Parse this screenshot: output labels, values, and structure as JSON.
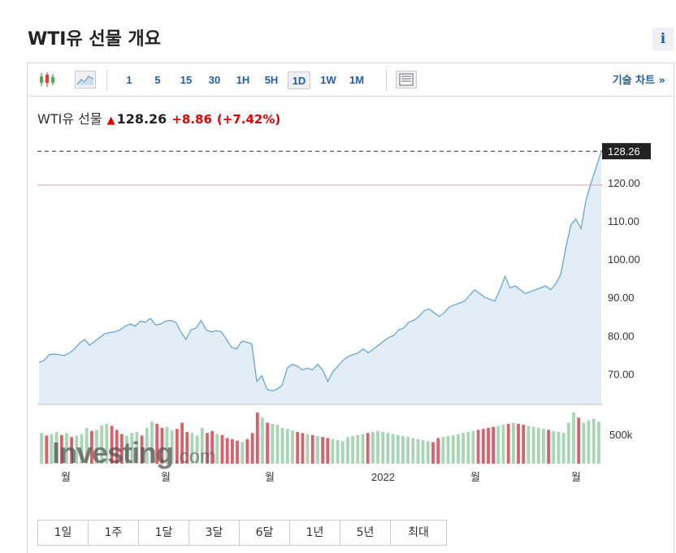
{
  "page": {
    "title": "WTI유 선물 개요"
  },
  "info_button": {
    "label": "i"
  },
  "toolbar": {
    "intervals": [
      "1",
      "5",
      "15",
      "30",
      "1H",
      "5H",
      "1D",
      "1W",
      "1M"
    ],
    "active_interval": "1D",
    "technical_link": "기술 차트 »"
  },
  "quote": {
    "name": "WTI유 선물",
    "price": "128.26",
    "change": "+8.86",
    "change_pct": "(+7.42%)",
    "direction": "up",
    "up_color": "#e00000"
  },
  "watermark": {
    "text": "Investing",
    "suffix": ".com"
  },
  "chart_data": {
    "type": "line",
    "x_labels": [
      "월",
      "월",
      "월",
      "2022",
      "월",
      "월"
    ],
    "price": [
      73.0,
      73.5,
      75.0,
      75.2,
      75.0,
      74.8,
      75.5,
      76.5,
      78.0,
      79.0,
      77.5,
      78.5,
      79.5,
      80.5,
      80.8,
      81.0,
      81.5,
      82.5,
      83.0,
      82.5,
      83.8,
      83.5,
      84.5,
      82.8,
      83.0,
      83.8,
      84.0,
      83.5,
      81.0,
      79.0,
      81.5,
      82.0,
      84.0,
      81.5,
      81.0,
      81.3,
      81.0,
      79.0,
      77.0,
      76.5,
      78.5,
      78.3,
      77.8,
      68.0,
      69.5,
      66.0,
      65.5,
      66.0,
      67.0,
      71.5,
      72.5,
      72.0,
      71.0,
      71.5,
      71.0,
      72.5,
      71.0,
      68.0,
      70.5,
      72.0,
      73.5,
      74.5,
      75.0,
      75.5,
      76.5,
      75.5,
      76.5,
      77.5,
      78.5,
      79.5,
      80.0,
      81.5,
      82.0,
      83.5,
      84.0,
      85.0,
      86.5,
      87.0,
      86.0,
      85.0,
      86.0,
      87.5,
      88.0,
      88.5,
      89.0,
      90.5,
      92.0,
      91.0,
      90.0,
      89.5,
      89.0,
      92.0,
      95.5,
      92.5,
      93.0,
      92.0,
      91.0,
      91.5,
      92.0,
      92.5,
      93.0,
      92.0,
      93.5,
      96.0,
      103.0,
      109.0,
      110.5,
      108.0,
      115.5,
      120.0,
      124.0,
      128.26
    ],
    "volume": [
      60,
      55,
      58,
      62,
      56,
      60,
      52,
      55,
      58,
      70,
      64,
      66,
      75,
      78,
      74,
      66,
      58,
      55,
      60,
      62,
      55,
      70,
      82,
      78,
      70,
      72,
      65,
      68,
      80,
      62,
      60,
      55,
      70,
      60,
      64,
      58,
      56,
      50,
      48,
      45,
      42,
      48,
      60,
      100,
      90,
      80,
      78,
      76,
      70,
      68,
      65,
      62,
      60,
      58,
      56,
      54,
      52,
      50,
      48,
      46,
      44,
      52,
      54,
      56,
      58,
      60,
      62,
      64,
      62,
      60,
      58,
      56,
      54,
      52,
      50,
      48,
      46,
      44,
      42,
      50,
      52,
      54,
      56,
      58,
      60,
      62,
      64,
      66,
      68,
      70,
      72,
      74,
      76,
      78,
      80,
      78,
      76,
      74,
      72,
      70,
      68,
      66,
      64,
      62,
      60,
      80,
      100,
      90,
      80,
      85,
      88,
      82
    ],
    "volume_up": [
      true,
      false,
      true,
      true,
      false,
      true,
      false,
      true,
      true,
      true,
      false,
      true,
      true,
      true,
      false,
      false,
      false,
      true,
      true,
      true,
      false,
      true,
      true,
      false,
      false,
      true,
      true,
      false,
      false,
      false,
      true,
      true,
      true,
      false,
      false,
      true,
      false,
      false,
      false,
      false,
      true,
      false,
      false,
      false,
      true,
      false,
      true,
      true,
      true,
      true,
      true,
      false,
      false,
      true,
      false,
      true,
      false,
      false,
      true,
      true,
      true,
      true,
      true,
      true,
      true,
      false,
      true,
      true,
      true,
      true,
      true,
      true,
      true,
      true,
      true,
      true,
      true,
      true,
      false,
      false,
      true,
      true,
      true,
      true,
      true,
      true,
      true,
      false,
      false,
      false,
      false,
      true,
      true,
      false,
      true,
      false,
      false,
      true,
      true,
      true,
      true,
      false,
      true,
      true,
      true,
      true,
      true,
      false,
      true,
      true,
      true,
      true
    ],
    "y_ticks": [
      "70.00",
      "80.00",
      "90.00",
      "100.00",
      "110.00",
      "120.00"
    ],
    "last_label": "128.26",
    "ref_level": 119.4,
    "ylim": [
      62,
      130
    ],
    "volume_tick": "500k",
    "line_color": "#5ba0d6",
    "area_color": "#e3edf6",
    "up_volume_color": "#a8d5b3",
    "down_volume_color": "#d9626a",
    "ref_line_color": "#e8a0a8"
  },
  "range_buttons": [
    "1일",
    "1주",
    "1달",
    "3달",
    "6달",
    "1년",
    "5년",
    "최대"
  ]
}
